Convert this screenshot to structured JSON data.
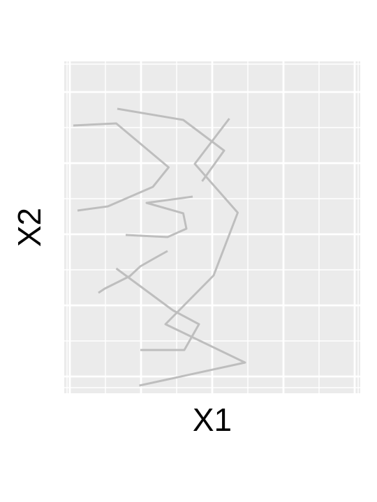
{
  "chart_data": {
    "type": "line",
    "xlabel": "X1",
    "ylabel": "X2",
    "grid": true,
    "legend": "none",
    "x_ticks_labeled": false,
    "y_ticks_labeled": false,
    "background_color": "#EBEBEB",
    "gridline_color": "#FFFFFF",
    "line_color": "#BEBEBE",
    "series": [
      {
        "x": [
          0.195,
          0.7,
          0.32,
          0.55,
          0.665,
          0.46,
          0.625
        ],
        "y": [
          -2.23,
          -1.9,
          -1.35,
          -0.65,
          0.25,
          0.95,
          1.6
        ],
        "shape": "lower stroke"
      },
      {
        "x": [
          0.495,
          0.6,
          0.405,
          0.09
        ],
        "y": [
          0.7,
          1.14,
          1.58,
          1.74
        ],
        "shape": "cap"
      },
      {
        "x": [
          0.45,
          0.23,
          0.405,
          0.42,
          0.33,
          0.13
        ],
        "y": [
          0.48,
          0.39,
          0.24,
          0.02,
          -0.1,
          -0.07
        ],
        "shape": "connecting"
      },
      {
        "x": [
          -0.12,
          0.085,
          0.335,
          0.26,
          0.045,
          -0.1
        ],
        "y": [
          1.5,
          1.53,
          0.9,
          0.62,
          0.34,
          0.28
        ],
        "shape": "upper stroke"
      },
      {
        "x": [
          0.0,
          0.03,
          0.15,
          0.2,
          0.27,
          0.33
        ],
        "y": [
          -0.9,
          -0.84,
          -0.66,
          -0.52,
          -0.4,
          -0.3
        ],
        "shape": "lower"
      },
      {
        "x": [
          0.085,
          0.355,
          0.48,
          0.41,
          0.2
        ],
        "y": [
          -0.55,
          -1.15,
          -1.35,
          -1.72,
          -1.72
        ],
        "shape": "bottom"
      }
    ]
  }
}
